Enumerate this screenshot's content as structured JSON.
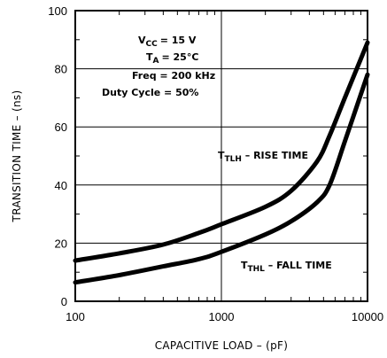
{
  "chart_data": {
    "type": "line",
    "xlabel": "CAPACITIVE LOAD – (pF)",
    "ylabel": "TRANSITION TIME – (ns)",
    "xscale": "log",
    "xlim": [
      100,
      10000
    ],
    "ylim": [
      0,
      100
    ],
    "x_ticks": [
      "100",
      "1000",
      "10000"
    ],
    "y_ticks": [
      "0",
      "20",
      "40",
      "60",
      "80",
      "100"
    ],
    "grid": true,
    "conditions": {
      "vcc_main": "V",
      "vcc_sub": "CC",
      "vcc_value": "= 15 V",
      "ta_main": "T",
      "ta_sub": "A",
      "ta_value": "= 25°C",
      "freq": "Freq  = 200 kHz",
      "duty": "Duty Cycle = 50%"
    },
    "series": [
      {
        "name": "RISE TIME",
        "label_main": "T",
        "label_sub": "TLH",
        "label_text": " –  RISE TIME",
        "color": "#000000",
        "x": [
          100,
          200,
          400,
          700,
          1000,
          2000,
          3000,
          4500,
          5500,
          7000,
          10000
        ],
        "y": [
          14,
          16.5,
          19.5,
          23.5,
          26.5,
          32.5,
          38,
          48,
          57,
          70,
          89
        ]
      },
      {
        "name": "FALL TIME",
        "label_main": "T",
        "label_sub": "THL",
        "label_text": " –  FALL TIME",
        "color": "#000000",
        "x": [
          100,
          200,
          400,
          700,
          1000,
          2000,
          3000,
          4500,
          5500,
          7000,
          10000
        ],
        "y": [
          6.5,
          9,
          12,
          14.5,
          17,
          23,
          27.5,
          34,
          40,
          55,
          78
        ]
      }
    ]
  }
}
